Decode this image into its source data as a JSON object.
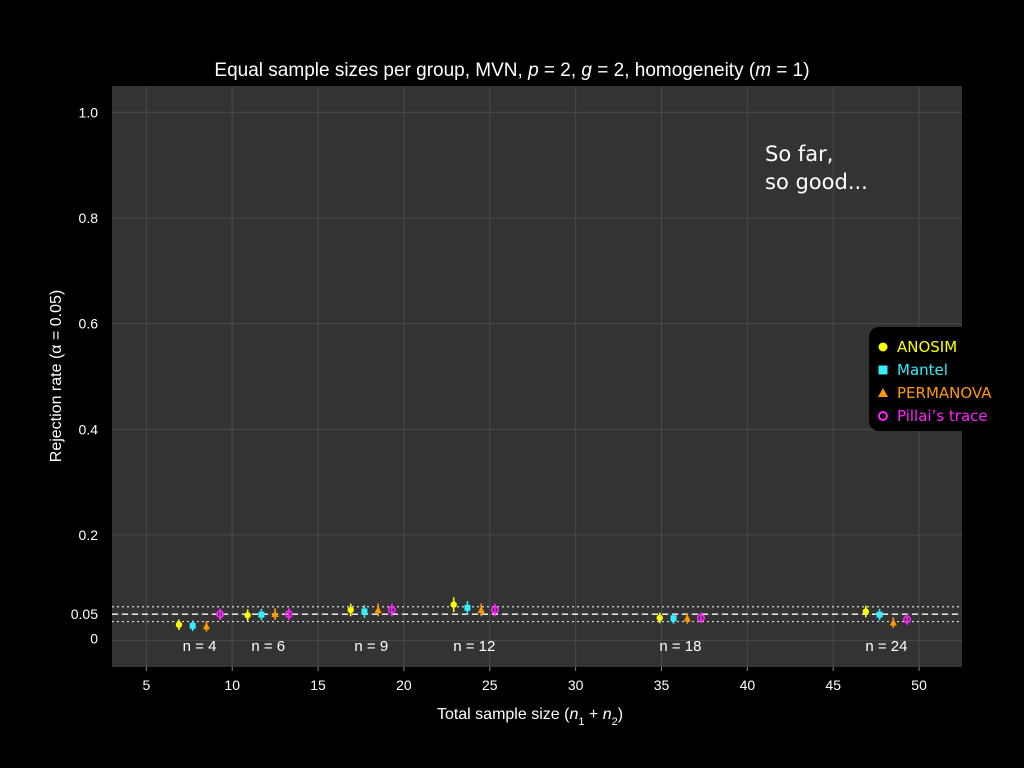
{
  "chart_data": {
    "type": "scatter",
    "title_parts": [
      {
        "text": "Equal sample sizes per group, MVN, ",
        "italic": false
      },
      {
        "text": "p",
        "italic": true
      },
      {
        "text": " = 2, ",
        "italic": false
      },
      {
        "text": "g",
        "italic": true
      },
      {
        "text": " = 2, homogeneity (",
        "italic": false
      },
      {
        "text": "m",
        "italic": true
      },
      {
        "text": " = 1)",
        "italic": false
      }
    ],
    "ylabel": "Rejection rate (α = 0.05)",
    "xlabel": "Total sample size (n1 + n2)",
    "xlim": [
      3,
      52.5
    ],
    "ylim": [
      -0.05,
      1.05
    ],
    "x_ticks": [
      5,
      10,
      15,
      20,
      25,
      30,
      35,
      40,
      45,
      50
    ],
    "y_ticks": [
      {
        "value": 1.0,
        "label": "1.0"
      },
      {
        "value": 0.8,
        "label": "0.8"
      },
      {
        "value": 0.6,
        "label": "0.6"
      },
      {
        "value": 0.4,
        "label": "0.4"
      },
      {
        "value": 0.2,
        "label": "0.2"
      },
      {
        "value": 0.05,
        "label": "0.05"
      },
      {
        "value": 0.0,
        "label": "0"
      }
    ],
    "grid": true,
    "reference_lines": {
      "alpha": 0.05,
      "upper": 0.064,
      "lower": 0.036
    },
    "series": [
      {
        "name": "ANOSIM",
        "marker": "circle",
        "color": "#ffff00",
        "x": [
          6.9,
          10.9,
          16.9,
          22.9,
          34.9,
          46.9
        ],
        "y": [
          0.03,
          0.048,
          0.058,
          0.068,
          0.043,
          0.055
        ],
        "err": [
          0.01,
          0.011,
          0.012,
          0.014,
          0.01,
          0.011
        ]
      },
      {
        "name": "Mantel",
        "marker": "square",
        "color": "#33eeff",
        "x": [
          7.7,
          11.7,
          17.7,
          23.7,
          35.7,
          47.7
        ],
        "y": [
          0.028,
          0.049,
          0.055,
          0.062,
          0.042,
          0.049
        ],
        "err": [
          0.01,
          0.011,
          0.012,
          0.013,
          0.01,
          0.011
        ]
      },
      {
        "name": "PERMANOVA",
        "marker": "triangle",
        "color": "#ff9900",
        "x": [
          8.5,
          12.5,
          18.5,
          24.5,
          36.5,
          48.5
        ],
        "y": [
          0.027,
          0.05,
          0.058,
          0.058,
          0.042,
          0.034
        ],
        "err": [
          0.01,
          0.011,
          0.012,
          0.012,
          0.01,
          0.01
        ]
      },
      {
        "name": "Pillai’s trace",
        "marker": "open-circle",
        "color": "#ff22ff",
        "x": [
          9.3,
          13.3,
          19.3,
          25.3,
          37.3,
          49.3
        ],
        "y": [
          0.05,
          0.05,
          0.058,
          0.058,
          0.043,
          0.04
        ],
        "err": [
          0.011,
          0.011,
          0.012,
          0.012,
          0.01,
          0.01
        ]
      }
    ],
    "group_labels": [
      {
        "text": "n = 4",
        "x": 8.1
      },
      {
        "text": "n = 6",
        "x": 12.1
      },
      {
        "text": "n = 9",
        "x": 18.1
      },
      {
        "text": "n = 12",
        "x": 24.1
      },
      {
        "text": "n = 18",
        "x": 36.1
      },
      {
        "text": "n = 24",
        "x": 48.1
      }
    ],
    "annotation": [
      "So far,",
      "so good..."
    ],
    "legend_position": "right"
  }
}
